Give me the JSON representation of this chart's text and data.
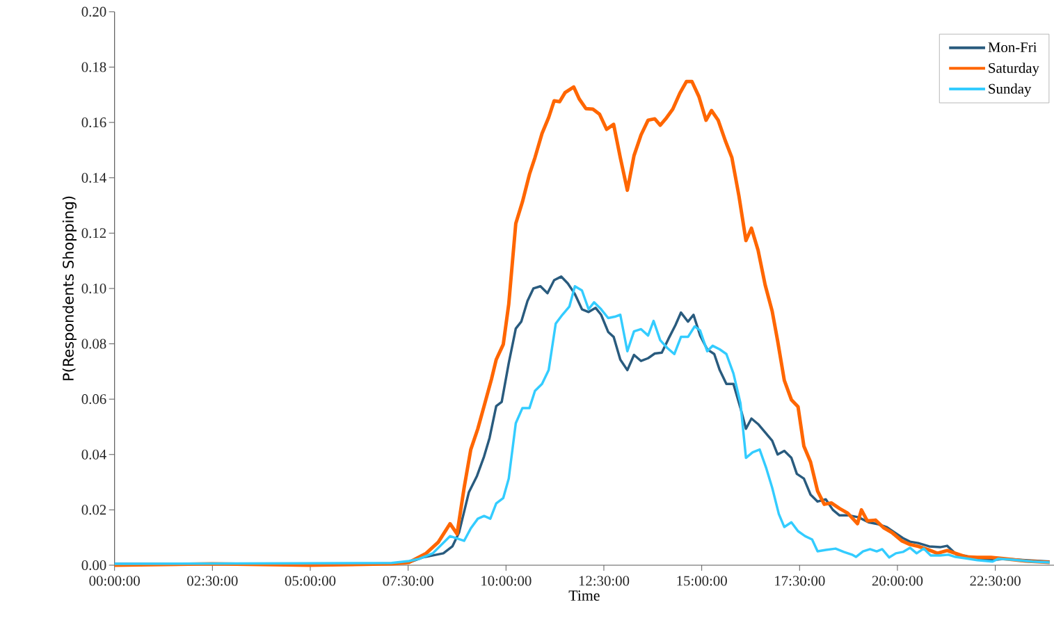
{
  "chart_data": {
    "type": "line",
    "xlabel": "Time",
    "ylabel": "P(Respondents Shopping)",
    "xlim": [
      0,
      24
    ],
    "ylim": [
      0,
      0.2
    ],
    "xticks": [
      {
        "value": 0,
        "label": "00:00:00"
      },
      {
        "value": 2.5,
        "label": "02:30:00"
      },
      {
        "value": 5,
        "label": "05:00:00"
      },
      {
        "value": 7.5,
        "label": "07:30:00"
      },
      {
        "value": 10,
        "label": "10:00:00"
      },
      {
        "value": 12.5,
        "label": "12:30:00"
      },
      {
        "value": 15,
        "label": "15:00:00"
      },
      {
        "value": 17.5,
        "label": "17:30:00"
      },
      {
        "value": 20,
        "label": "20:00:00"
      },
      {
        "value": 22.5,
        "label": "22:30:00"
      }
    ],
    "yticks": [
      {
        "value": 0,
        "label": "0.00"
      },
      {
        "value": 0.02,
        "label": "0.02"
      },
      {
        "value": 0.04,
        "label": "0.04"
      },
      {
        "value": 0.06,
        "label": "0.06"
      },
      {
        "value": 0.08,
        "label": "0.08"
      },
      {
        "value": 0.1,
        "label": "0.10"
      },
      {
        "value": 0.12,
        "label": "0.12"
      },
      {
        "value": 0.14,
        "label": "0.14"
      },
      {
        "value": 0.16,
        "label": "0.16"
      },
      {
        "value": 0.18,
        "label": "0.18"
      },
      {
        "value": 0.2,
        "label": "0.20"
      }
    ],
    "grid": false,
    "legend": "top right",
    "line_style": "solid",
    "series": [
      {
        "name": "Mon-Fri",
        "color": "#295b7e",
        "x": [
          0,
          7.08,
          7.52,
          7.87,
          8.4,
          8.63,
          8.8,
          9.05,
          9.26,
          9.44,
          9.58,
          9.75,
          9.89,
          10.07,
          10.25,
          10.39,
          10.55,
          10.7,
          10.88,
          11.06,
          11.23,
          11.41,
          11.58,
          11.76,
          11.94,
          12.11,
          12.29,
          12.43,
          12.61,
          12.75,
          12.92,
          13.1,
          13.27,
          13.45,
          13.63,
          13.8,
          13.98,
          14.15,
          14.33,
          14.47,
          14.65,
          14.79,
          14.96,
          15.14,
          15.32,
          15.46,
          15.63,
          15.81,
          15.99,
          16.13,
          16.27,
          16.44,
          16.62,
          16.8,
          16.94,
          17.11,
          17.29,
          17.43,
          17.61,
          17.78,
          17.96,
          18.17,
          18.35,
          18.52,
          18.77,
          19.01,
          19.26,
          19.51,
          19.72,
          19.93,
          20.14,
          20.32,
          20.53,
          20.81,
          21.09,
          21.27,
          21.51,
          21.76,
          22.01,
          22.39,
          22.75,
          23.27,
          23.89
        ],
        "values": [
          0.0005,
          0.0005,
          0.001,
          0.0028,
          0.0043,
          0.0068,
          0.0118,
          0.0263,
          0.0323,
          0.0393,
          0.046,
          0.0575,
          0.059,
          0.073,
          0.0855,
          0.088,
          0.0955,
          0.1,
          0.1008,
          0.0983,
          0.103,
          0.1043,
          0.1018,
          0.098,
          0.0925,
          0.0915,
          0.093,
          0.0905,
          0.0843,
          0.0825,
          0.0743,
          0.0705,
          0.076,
          0.0738,
          0.0748,
          0.0765,
          0.0768,
          0.0818,
          0.0868,
          0.0913,
          0.088,
          0.0905,
          0.083,
          0.078,
          0.0763,
          0.0705,
          0.0655,
          0.0655,
          0.0568,
          0.0493,
          0.053,
          0.051,
          0.048,
          0.045,
          0.04,
          0.0413,
          0.0388,
          0.033,
          0.0313,
          0.0255,
          0.023,
          0.0238,
          0.02,
          0.018,
          0.018,
          0.0173,
          0.0155,
          0.0148,
          0.0138,
          0.0118,
          0.0098,
          0.0085,
          0.008,
          0.0068,
          0.0065,
          0.007,
          0.0038,
          0.0033,
          0.0023,
          0.0018,
          0.0023,
          0.0018,
          0.0013
        ]
      },
      {
        "name": "Saturday",
        "color": "#ff6600",
        "x": [
          0,
          2.5,
          4.96,
          6.37,
          7.08,
          7.52,
          7.96,
          8.27,
          8.57,
          8.75,
          8.93,
          9.1,
          9.28,
          9.45,
          9.63,
          9.75,
          9.93,
          10.07,
          10.25,
          10.42,
          10.6,
          10.74,
          10.92,
          11.09,
          11.23,
          11.37,
          11.51,
          11.73,
          11.87,
          12.04,
          12.22,
          12.39,
          12.57,
          12.75,
          12.92,
          13.1,
          13.27,
          13.45,
          13.63,
          13.8,
          13.94,
          14.08,
          14.26,
          14.44,
          14.61,
          14.75,
          14.93,
          15.11,
          15.25,
          15.42,
          15.6,
          15.77,
          15.95,
          16.13,
          16.27,
          16.44,
          16.62,
          16.8,
          16.94,
          17.11,
          17.29,
          17.46,
          17.61,
          17.78,
          17.96,
          18.13,
          18.31,
          18.52,
          18.73,
          18.98,
          19.08,
          19.23,
          19.44,
          19.65,
          19.86,
          20.11,
          20.32,
          20.53,
          20.81,
          21.02,
          21.27,
          21.48,
          21.76,
          22.04,
          22.39,
          22.75,
          23.27,
          23.89
        ],
        "values": [
          0,
          0.0005,
          0,
          0.0003,
          0.0005,
          0.001,
          0.0043,
          0.0083,
          0.015,
          0.0113,
          0.028,
          0.0418,
          0.0493,
          0.058,
          0.0673,
          0.0743,
          0.0798,
          0.0943,
          0.1235,
          0.1313,
          0.1413,
          0.1473,
          0.156,
          0.1618,
          0.1678,
          0.1675,
          0.1708,
          0.1728,
          0.1685,
          0.165,
          0.1648,
          0.163,
          0.1575,
          0.1593,
          0.1473,
          0.1355,
          0.148,
          0.1555,
          0.1608,
          0.1613,
          0.159,
          0.1613,
          0.1648,
          0.1705,
          0.1748,
          0.1748,
          0.1693,
          0.1608,
          0.1643,
          0.1608,
          0.1535,
          0.1473,
          0.1335,
          0.1173,
          0.1218,
          0.1138,
          0.1013,
          0.0918,
          0.081,
          0.0668,
          0.0598,
          0.0573,
          0.043,
          0.0373,
          0.0268,
          0.022,
          0.0225,
          0.0205,
          0.0188,
          0.015,
          0.02,
          0.016,
          0.0163,
          0.0135,
          0.0118,
          0.0088,
          0.0075,
          0.0068,
          0.0055,
          0.0043,
          0.0053,
          0.0043,
          0.003,
          0.0028,
          0.0028,
          0.0023,
          0.0015,
          0.001
        ]
      },
      {
        "name": "Sunday",
        "color": "#33ccff",
        "x": [
          0,
          7.08,
          7.52,
          7.78,
          8.13,
          8.57,
          8.93,
          9.1,
          9.28,
          9.44,
          9.6,
          9.75,
          9.93,
          10.07,
          10.25,
          10.42,
          10.6,
          10.74,
          10.92,
          11.09,
          11.27,
          11.44,
          11.62,
          11.76,
          11.94,
          12.11,
          12.25,
          12.43,
          12.61,
          12.78,
          12.92,
          13.1,
          13.27,
          13.45,
          13.63,
          13.77,
          13.94,
          14.12,
          14.3,
          14.47,
          14.65,
          14.82,
          14.96,
          15.14,
          15.28,
          15.46,
          15.63,
          15.81,
          15.99,
          16.13,
          16.3,
          16.48,
          16.65,
          16.8,
          16.97,
          17.11,
          17.29,
          17.46,
          17.64,
          17.82,
          17.96,
          18.17,
          18.42,
          18.63,
          18.84,
          18.94,
          19.12,
          19.3,
          19.47,
          19.61,
          19.79,
          19.96,
          20.14,
          20.32,
          20.49,
          20.67,
          20.85,
          21.09,
          21.3,
          21.48,
          21.73,
          22.04,
          22.43,
          22.57,
          22.92,
          23.45,
          23.89
        ],
        "values": [
          0.0005,
          0.0008,
          0.0015,
          0.0023,
          0.0043,
          0.0105,
          0.0088,
          0.0133,
          0.0168,
          0.0178,
          0.0168,
          0.0223,
          0.0243,
          0.0313,
          0.0513,
          0.0568,
          0.0568,
          0.063,
          0.0655,
          0.0705,
          0.0873,
          0.0905,
          0.0935,
          0.1008,
          0.0993,
          0.0925,
          0.095,
          0.0925,
          0.0893,
          0.0898,
          0.0905,
          0.0773,
          0.0845,
          0.0853,
          0.083,
          0.0883,
          0.0813,
          0.0785,
          0.0763,
          0.0825,
          0.0825,
          0.0863,
          0.0848,
          0.0773,
          0.0793,
          0.078,
          0.0763,
          0.0693,
          0.0585,
          0.0388,
          0.0408,
          0.0418,
          0.035,
          0.028,
          0.0185,
          0.0138,
          0.0155,
          0.0123,
          0.0105,
          0.0093,
          0.005,
          0.0055,
          0.006,
          0.0048,
          0.0038,
          0.003,
          0.005,
          0.0058,
          0.005,
          0.0058,
          0.0028,
          0.0043,
          0.0048,
          0.0063,
          0.0043,
          0.006,
          0.0035,
          0.0035,
          0.0038,
          0.003,
          0.0025,
          0.0018,
          0.0013,
          0.0023,
          0.002,
          0.0013,
          0.001
        ]
      }
    ]
  }
}
